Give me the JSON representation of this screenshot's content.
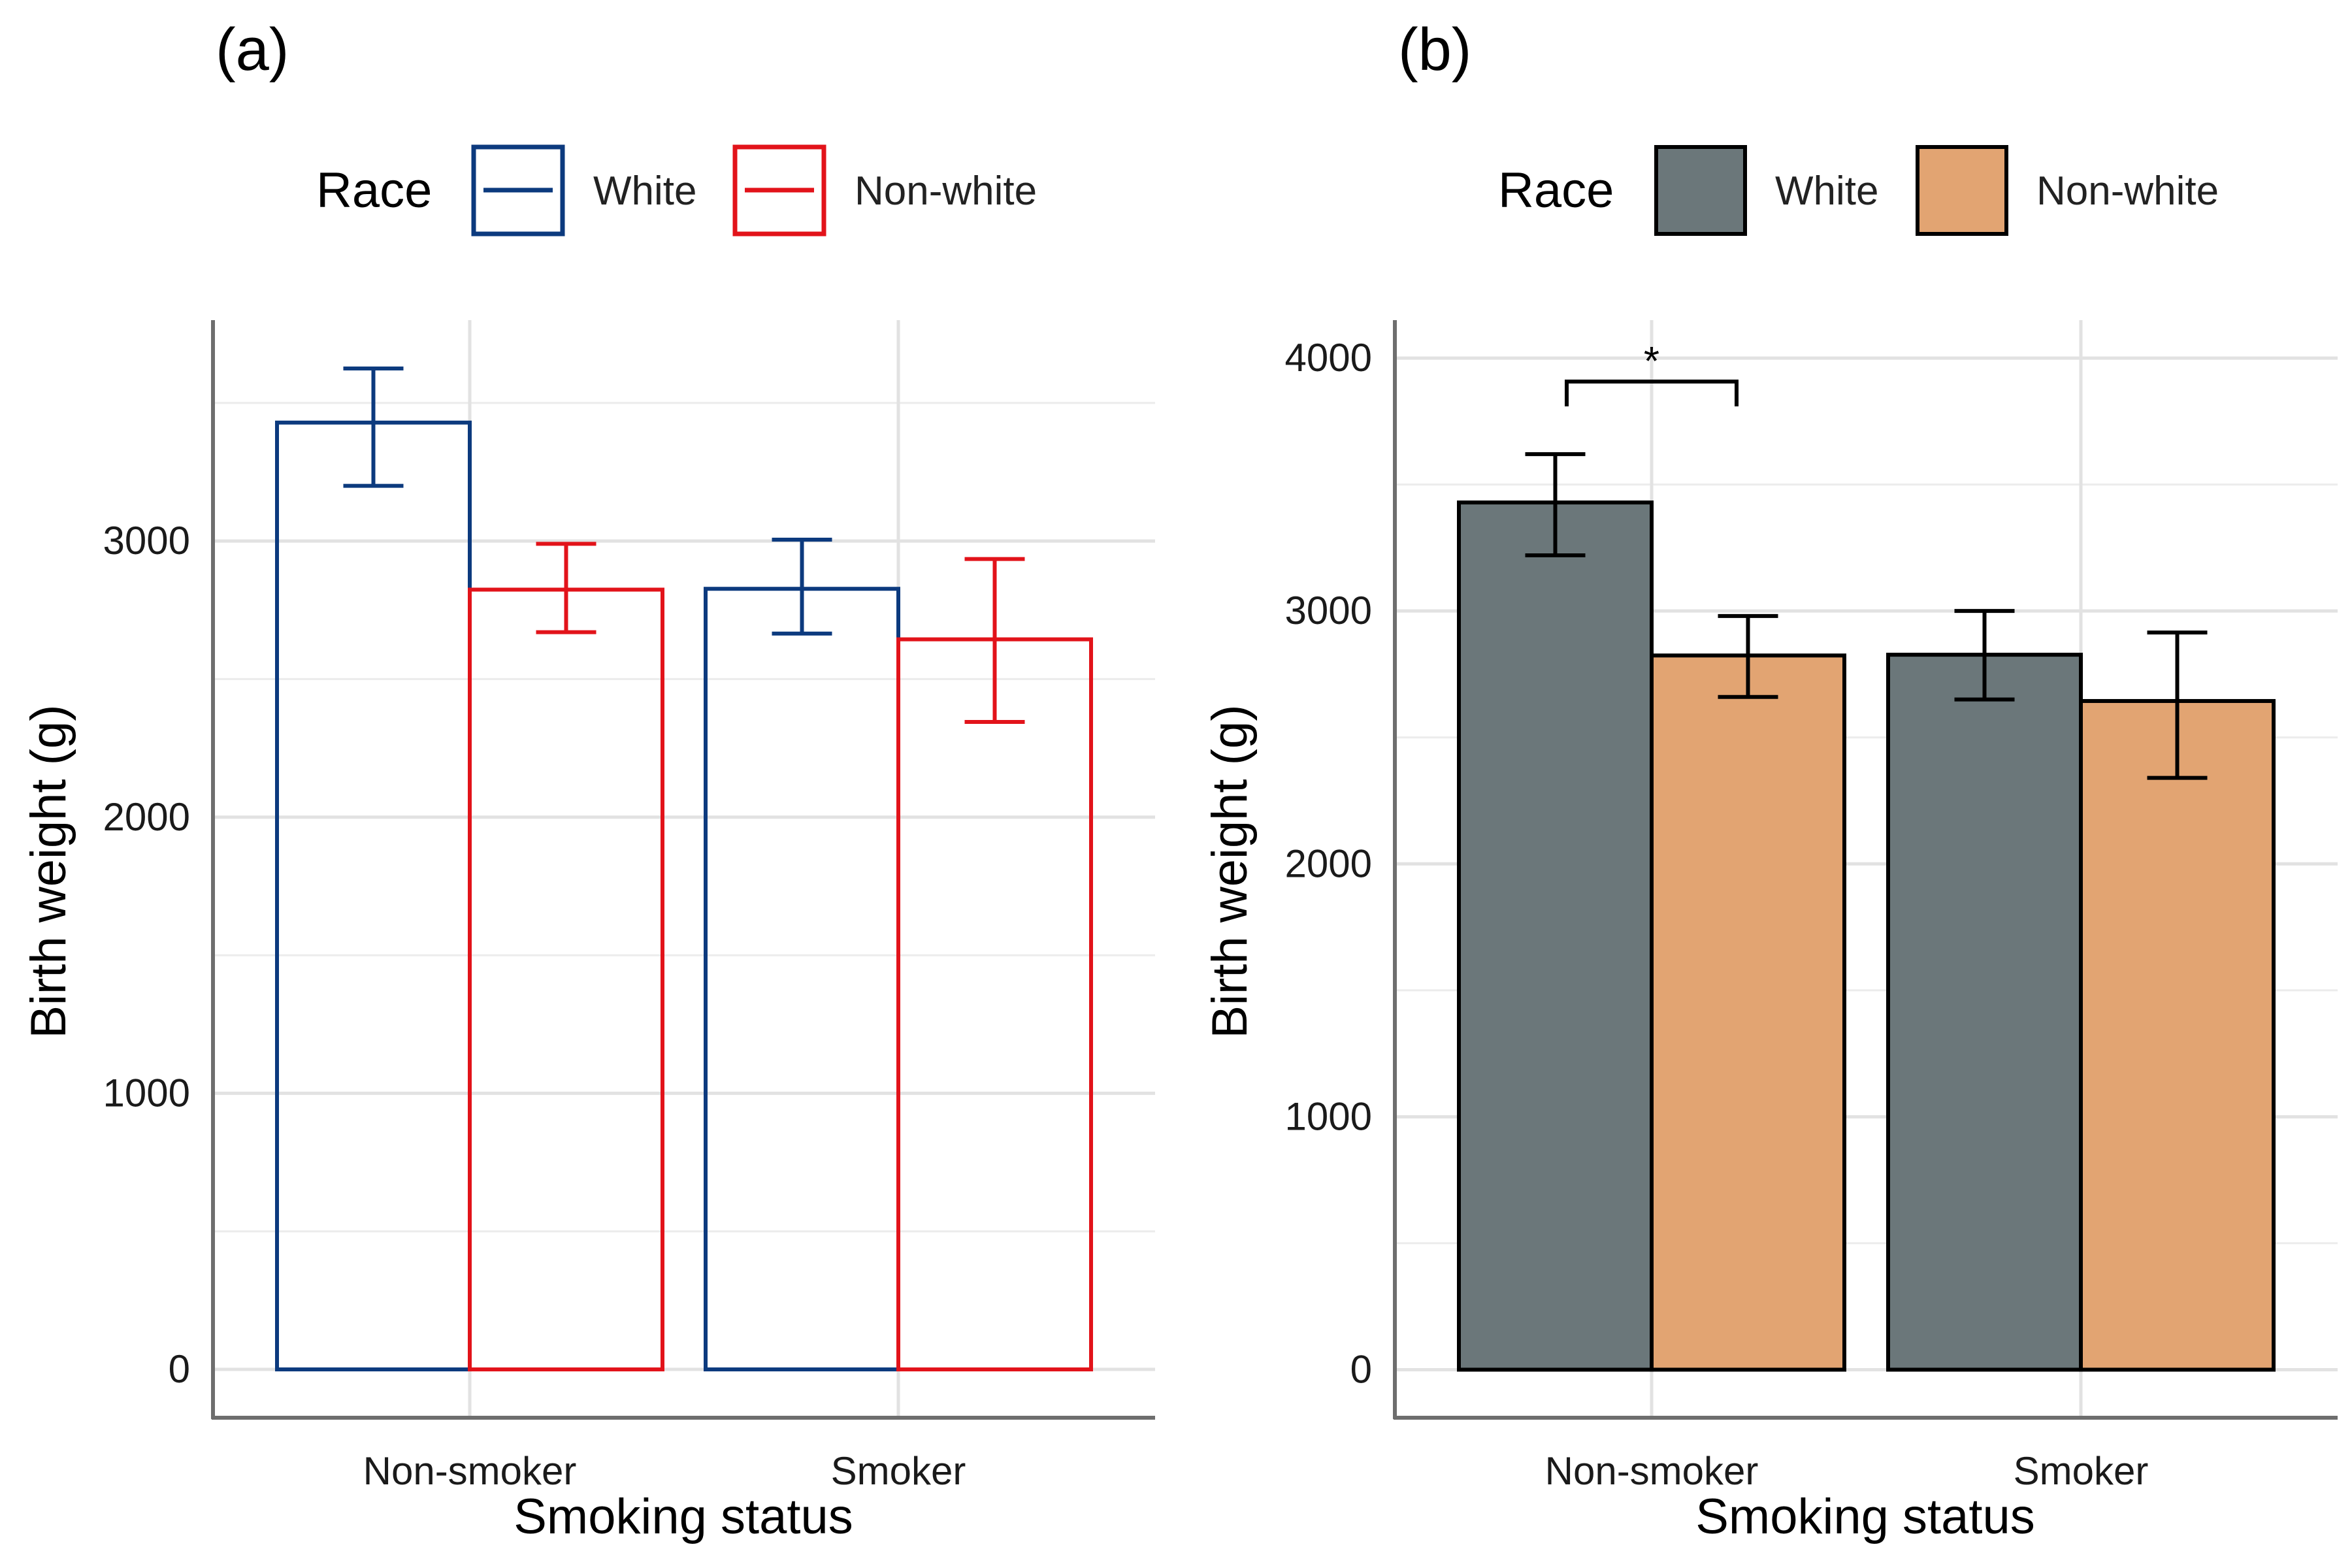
{
  "chart_data": [
    {
      "type": "bar",
      "panel_label": "(a)",
      "style": "outline",
      "categories": [
        "Non-smoker",
        "Smoker"
      ],
      "xlabel": "Smoking status",
      "ylabel": "Birth weight (g)",
      "yticks": [
        0,
        1000,
        2000,
        3000
      ],
      "ylim": [
        -175,
        3800
      ],
      "grid": true,
      "legend": {
        "title": "Race",
        "position": "top"
      },
      "series": [
        {
          "name": "White",
          "color": "#0C3A7E",
          "values": [
            3429,
            2827
          ],
          "err_low": [
            3200,
            2665
          ],
          "err_high": [
            3625,
            3005
          ]
        },
        {
          "name": "Non-white",
          "color": "#E2131A",
          "values": [
            2824,
            2644
          ],
          "err_low": [
            2670,
            2345
          ],
          "err_high": [
            2990,
            2935
          ]
        }
      ],
      "annotations": []
    },
    {
      "type": "bar",
      "panel_label": "(b)",
      "style": "filled",
      "categories": [
        "Non-smoker",
        "Smoker"
      ],
      "xlabel": "Smoking status",
      "ylabel": "Birth weight (g)",
      "yticks": [
        0,
        1000,
        2000,
        3000,
        4000
      ],
      "ylim": [
        -190,
        4150
      ],
      "grid": true,
      "legend": {
        "title": "Race",
        "position": "top"
      },
      "series": [
        {
          "name": "White",
          "color": "#6B777A",
          "values": [
            3429,
            2827
          ],
          "err_low": [
            3220,
            2650
          ],
          "err_high": [
            3620,
            3000
          ]
        },
        {
          "name": "Non-white",
          "color": "#E2A472",
          "values": [
            2824,
            2644
          ],
          "err_low": [
            2660,
            2340
          ],
          "err_high": [
            2980,
            2915
          ]
        }
      ],
      "annotations": [
        {
          "text": "*",
          "category": "Non-smoker",
          "type": "significance-bracket"
        }
      ]
    }
  ]
}
